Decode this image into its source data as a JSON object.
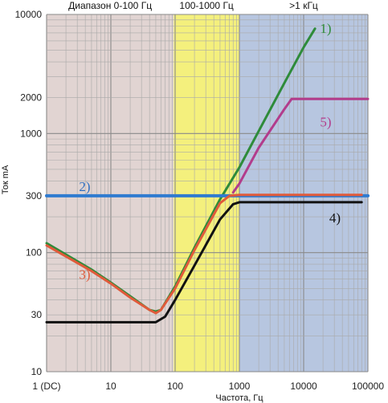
{
  "chart_data": {
    "type": "line",
    "title": "",
    "xlabel": "Частота, Гц",
    "ylabel": "Ток mA",
    "x_scale": "log",
    "y_scale": "log",
    "xlim": [
      1,
      100000
    ],
    "ylim": [
      10,
      10000
    ],
    "grid": true,
    "x_ticks": [
      {
        "value": 1,
        "label": "1 (DC)"
      },
      {
        "value": 10,
        "label": "10"
      },
      {
        "value": 100,
        "label": "100"
      },
      {
        "value": 1000,
        "label": "1000"
      },
      {
        "value": 10000,
        "label": "10000"
      },
      {
        "value": 100000,
        "label": "100000"
      }
    ],
    "y_ticks": [
      {
        "value": 10000,
        "label": "10000"
      },
      {
        "value": 2000,
        "label": "2000"
      },
      {
        "value": 1000,
        "label": "1000"
      },
      {
        "value": 300,
        "label": "300"
      },
      {
        "value": 100,
        "label": "100"
      },
      {
        "value": 30,
        "label": "30"
      },
      {
        "value": 10,
        "label": "10"
      }
    ],
    "bands": [
      {
        "label": "Диапазон 0-100 Гц",
        "from": 1,
        "to": 95,
        "color": "#e1d4d2"
      },
      {
        "label": "100-1000 Гц",
        "from": 95,
        "to": 1000,
        "color": "#f4f07d"
      },
      {
        "label": ">1 кГц",
        "from": 1000,
        "to": 100000,
        "color": "#b7c6e0"
      }
    ],
    "series": [
      {
        "name": "1)",
        "color": "#2e8b3a",
        "label_at": [
          18000,
          7000
        ],
        "label_color": "#2e8b3a",
        "x": [
          1,
          5,
          10,
          20,
          40,
          50,
          60,
          100,
          200,
          500,
          1000,
          2000,
          5000,
          10000,
          15000
        ],
        "y": [
          120,
          72,
          56,
          43,
          33,
          32,
          33,
          52,
          110,
          280,
          520,
          1050,
          2650,
          5300,
          7600
        ]
      },
      {
        "name": "2)",
        "color": "#2f7bd0",
        "label_at": [
          3.2,
          330
        ],
        "label_color": "#2f6fc0",
        "x": [
          1,
          100000
        ],
        "y": [
          300,
          300
        ]
      },
      {
        "name": "3)",
        "color": "#e05a3a",
        "label_at": [
          3.2,
          60
        ],
        "label_color": "#e05a3a",
        "x": [
          1,
          5,
          10,
          20,
          40,
          50,
          60,
          100,
          200,
          500,
          700,
          1000,
          10000,
          80000
        ],
        "y": [
          115,
          70,
          55,
          42,
          33,
          31,
          33,
          50,
          105,
          260,
          300,
          305,
          305,
          305
        ]
      },
      {
        "name": "4)",
        "color": "#111111",
        "label_at": [
          25000,
          180
        ],
        "label_color": "#111111",
        "x": [
          1,
          50,
          70,
          100,
          200,
          500,
          800,
          1000,
          2000,
          80000
        ],
        "y": [
          26,
          26,
          29,
          40,
          78,
          190,
          255,
          265,
          265,
          265
        ]
      },
      {
        "name": "5)",
        "color": "#b23c8c",
        "label_at": [
          18000,
          1150
        ],
        "label_color": "#b23c8c",
        "x": [
          800,
          1000,
          2000,
          5000,
          6500,
          100000
        ],
        "y": [
          320,
          380,
          760,
          1600,
          1950,
          1950
        ]
      }
    ]
  }
}
